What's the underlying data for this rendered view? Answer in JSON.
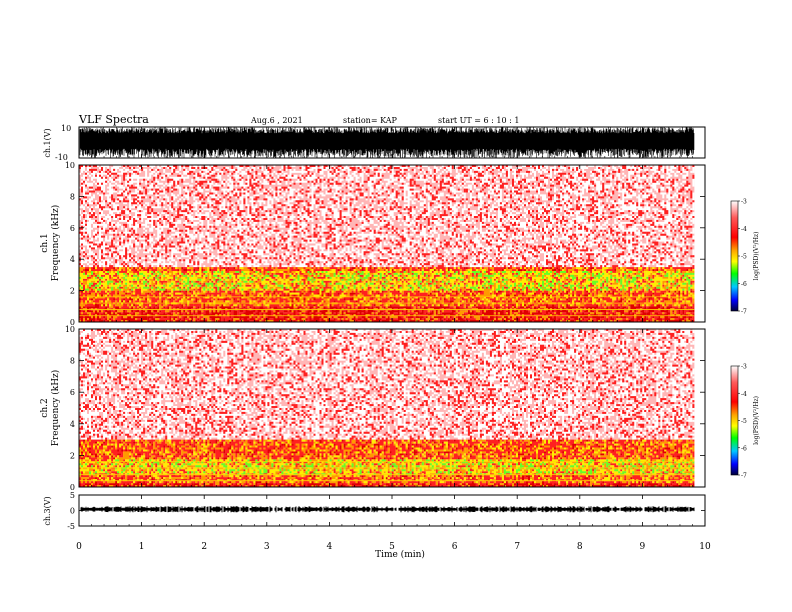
{
  "header": {
    "title": "VLF  Spectra",
    "date": "Aug.6   , 2021",
    "station": "station= KAP",
    "start": "start  UT  =   6  : 10 : 1"
  },
  "chart_data": [
    {
      "id": "ch1-waveform",
      "type": "line",
      "ylabel": "ch.1(V)",
      "ylim": [
        -10,
        10
      ],
      "yticklabels": [
        "10",
        "-10"
      ],
      "x_range_min": [
        0,
        9.83
      ],
      "description_values": {
        "envelope_upper": [
          6,
          10
        ],
        "envelope_lower": [
          -10,
          -4
        ]
      }
    },
    {
      "id": "ch1-spectrogram",
      "type": "heatmap",
      "ylabel": "ch.1\nFrequency  (kHz)",
      "ylabel_line1": "ch.1",
      "ylabel_line2": "Frequency  (kHz)",
      "ylim": [
        0,
        10
      ],
      "yticks": [
        0,
        2,
        4,
        6,
        8,
        10
      ],
      "xlim": [
        0,
        10
      ],
      "data_end": 9.83,
      "intense_band_khz": [
        1,
        3.5
      ],
      "bright_band_khz": [
        2,
        3.2
      ],
      "background": "red speckle on white"
    },
    {
      "id": "ch2-spectrogram",
      "type": "heatmap",
      "ylabel_line1": "ch.2",
      "ylabel_line2": "Frequency  (kHz)",
      "ylim": [
        0,
        10
      ],
      "yticks": [
        0,
        2,
        4,
        6,
        8,
        10
      ],
      "xlim": [
        0,
        10
      ],
      "data_end": 9.83,
      "intense_band_khz": [
        0.3,
        3
      ],
      "bright_band_khz": [
        0.8,
        1.8
      ],
      "background": "red speckle on white"
    },
    {
      "id": "ch3-waveform",
      "type": "line",
      "ylabel": "ch.3(V)",
      "ylim": [
        -5,
        5
      ],
      "yticks": [
        5,
        0,
        -5
      ],
      "yticklabels": [
        "5",
        "0",
        "-5"
      ],
      "baseline_level": 0.4
    }
  ],
  "xaxis": {
    "label": "Time  (min)",
    "ticks": [
      0,
      1,
      2,
      3,
      4,
      5,
      6,
      7,
      8,
      9,
      10
    ],
    "ticklabels": [
      "0",
      "1",
      "2",
      "3",
      "4",
      "5",
      "6",
      "7",
      "8",
      "9",
      "10"
    ]
  },
  "colorbar": {
    "label": "log(PSD)(V²/Hz)",
    "ticks": [
      -3,
      -4,
      -5,
      -6,
      -7
    ],
    "ticklabels": [
      "-3",
      "-4",
      "-5",
      "-6",
      "-7"
    ],
    "colors": [
      "#ffffff",
      "#ff4a4a",
      "#ff0000",
      "#ffff00",
      "#00ff00",
      "#00c8ff",
      "#0000ff",
      "#000040"
    ]
  }
}
